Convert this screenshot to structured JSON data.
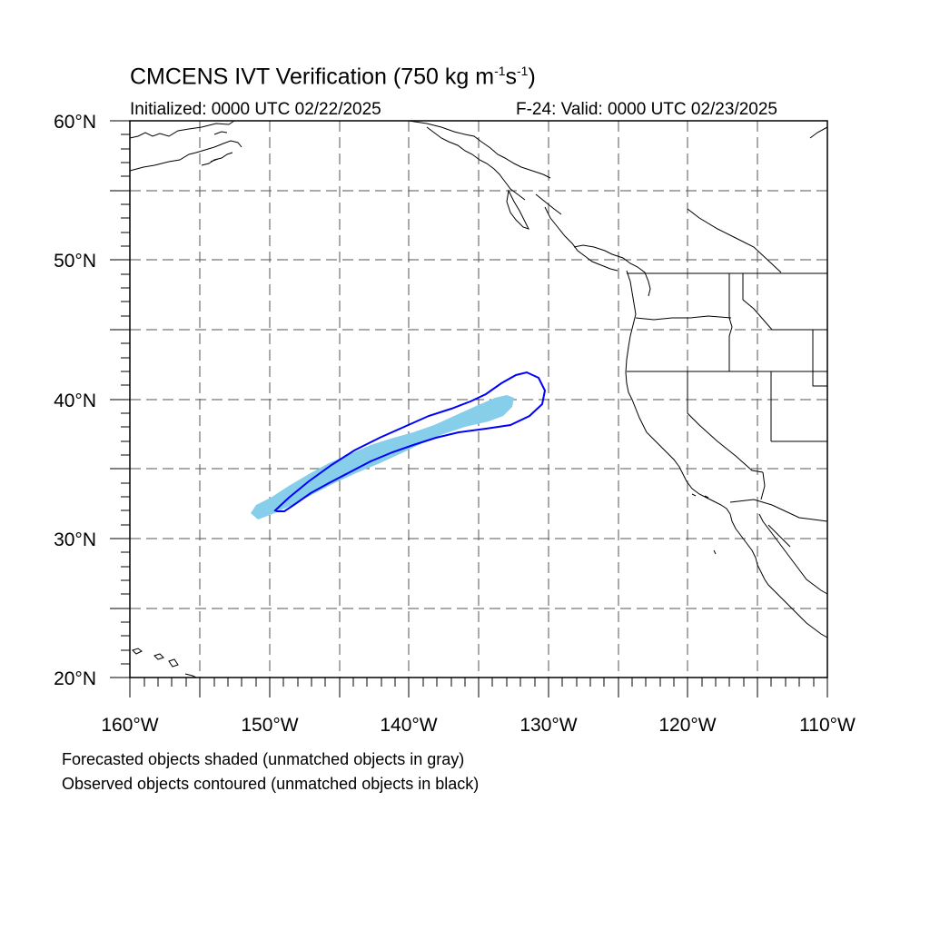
{
  "title": {
    "prefix": "CMCENS IVT Verification (750 kg m",
    "sup1": "-1",
    "mid": "s",
    "sup2": "-1",
    "suffix": ")"
  },
  "initialized": "Initialized: 0000 UTC 02/22/2025",
  "valid": "F-24: Valid: 0000 UTC 02/23/2025",
  "lat_labels": [
    "60°N",
    "50°N",
    "40°N",
    "30°N",
    "20°N"
  ],
  "lon_labels": [
    "160°W",
    "150°W",
    "140°W",
    "130°W",
    "120°W",
    "110°W"
  ],
  "footnotes": [
    "Forecasted objects shaded (unmatched objects in gray)",
    "Observed objects contoured (unmatched objects in black)"
  ],
  "colors": {
    "forecast_shade": "#87ceeb",
    "observed_contour": "#0000ff",
    "coastline": "#000000",
    "grid": "#555555"
  },
  "map": {
    "lon_range": [
      "160°W",
      "110°W"
    ],
    "lat_range": [
      "20°N",
      "60°N"
    ],
    "projection": "cylindrical equidistant"
  }
}
